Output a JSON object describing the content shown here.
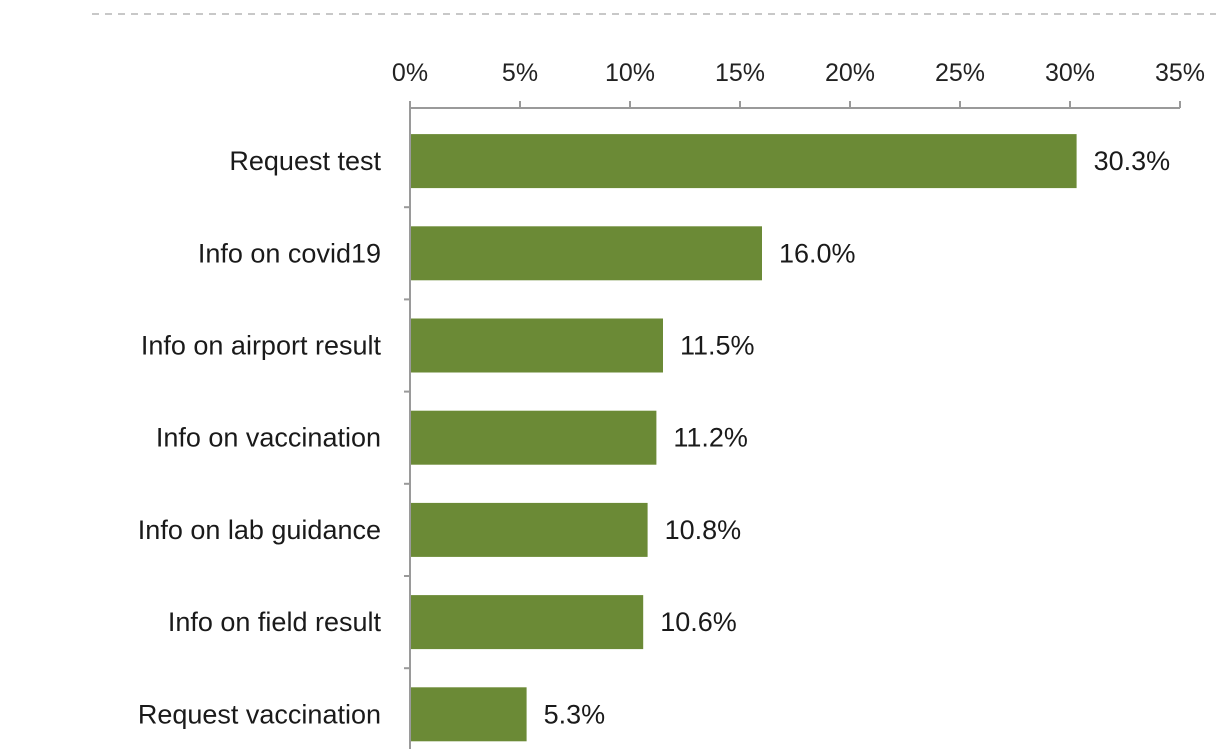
{
  "chart_data": {
    "type": "bar",
    "orientation": "horizontal",
    "categories": [
      "Request test",
      "Info on covid19",
      "Info on airport result",
      "Info on vaccination",
      "Info on lab guidance",
      "Info on field result",
      "Request vaccination"
    ],
    "values": [
      30.3,
      16.0,
      11.5,
      11.2,
      10.8,
      10.6,
      5.3
    ],
    "value_labels": [
      "30.3%",
      "16.0%",
      "11.5%",
      "11.2%",
      "10.8%",
      "10.6%",
      "5.3%"
    ],
    "x_ticks": [
      "0%",
      "5%",
      "10%",
      "15%",
      "20%",
      "25%",
      "30%",
      "35%"
    ],
    "xlim": [
      0,
      35
    ],
    "x_axis_position": "top",
    "title": "",
    "xlabel": "",
    "ylabel": "",
    "grid": false,
    "legend": "none",
    "colors": {
      "bar": "#6b8a36",
      "axis": "#9a9a9a",
      "divider": "#c8c8c8"
    }
  }
}
